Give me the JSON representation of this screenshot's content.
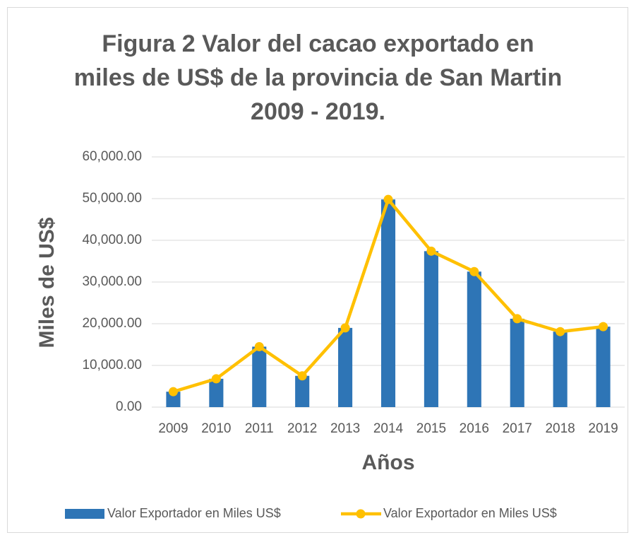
{
  "chart_data": {
    "type": "bar",
    "title": "Figura 2 Valor del cacao exportado en miles de US$ de la provincia de San Martin 2009 - 2019.",
    "x_label": "Años",
    "y_label": "Miles de US$",
    "categories": [
      "2009",
      "2010",
      "2011",
      "2012",
      "2013",
      "2014",
      "2015",
      "2016",
      "2017",
      "2018",
      "2019"
    ],
    "series": [
      {
        "name": "Valor Exportador en Miles US$",
        "type": "bar",
        "color": "#2e75b6",
        "values": [
          3700,
          6800,
          14500,
          7500,
          19000,
          49800,
          37400,
          32500,
          21200,
          18100,
          19300
        ]
      },
      {
        "name": "Valor Exportador en Miles US$",
        "type": "line",
        "color": "#ffc000",
        "values": [
          3700,
          6800,
          14500,
          7500,
          19000,
          49800,
          37400,
          32500,
          21200,
          18100,
          19300
        ]
      }
    ],
    "ylim": [
      0,
      60000
    ],
    "yticks": [
      {
        "value": 0,
        "label": "0.00"
      },
      {
        "value": 10000,
        "label": "10,000.00"
      },
      {
        "value": 20000,
        "label": "20,000.00"
      },
      {
        "value": 30000,
        "label": "30,000.00"
      },
      {
        "value": 40000,
        "label": "40,000.00"
      },
      {
        "value": 50000,
        "label": "50,000.00"
      },
      {
        "value": 60000,
        "label": "60,000.00"
      }
    ],
    "grid": true,
    "legend": "bottom"
  }
}
